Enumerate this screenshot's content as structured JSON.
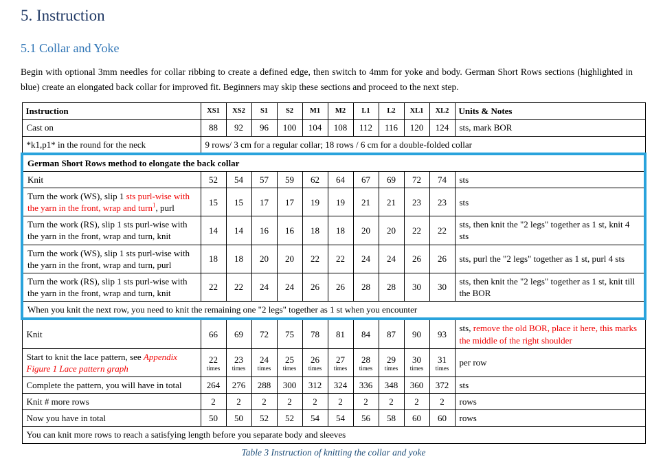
{
  "page": {
    "heading1": "5. Instruction",
    "heading2": "5.1 Collar and Yoke",
    "intro": "Begin with optional 3mm needles for collar ribbing to create a defined edge, then switch to 4mm for yoke and body. German Short Rows sections (highlighted in blue) create an elongated back collar for improved fit. Beginners may skip these sections and proceed to the next step.",
    "caption": "Table 3 Instruction of knitting the collar and yoke"
  },
  "colors": {
    "heading1": "#1f3864",
    "heading2": "#2e74b5",
    "caption": "#1f4e79",
    "highlight_border": "#29a3dc",
    "red_text": "#f00000"
  },
  "table": {
    "header": {
      "instruction": "Instruction",
      "sizes": [
        "XS1",
        "XS2",
        "S1",
        "S2",
        "M1",
        "M2",
        "L1",
        "L2",
        "XL1",
        "XL2"
      ],
      "units": "Units & Notes"
    },
    "sections": [
      {
        "name": "pre-section",
        "highlight": false,
        "rows": [
          {
            "label": "Cast on",
            "values": [
              "88",
              "92",
              "96",
              "100",
              "104",
              "108",
              "112",
              "116",
              "120",
              "124"
            ],
            "units": "sts, mark BOR"
          },
          {
            "label": "*k1,p1* in the round for the neck",
            "span_values": "9 rows/ 3 cm for a regular collar; 18 rows / 6 cm for a double-folded collar"
          }
        ]
      },
      {
        "name": "german-short-rows-section",
        "highlight": true,
        "rows": [
          {
            "span_all": "German Short Rows method to elongate the back collar",
            "bold": true
          },
          {
            "label": "Knit",
            "values": [
              "52",
              "54",
              "57",
              "59",
              "62",
              "64",
              "67",
              "69",
              "72",
              "74"
            ],
            "units": "sts"
          },
          {
            "label": [
              {
                "text": "Turn the work (WS), slip 1 "
              },
              {
                "text": "sts purl-wise with the yarn in the front, wrap and turn",
                "red": true
              },
              {
                "text": "1",
                "red": true,
                "sup": true
              },
              {
                "text": ", purl"
              }
            ],
            "values": [
              "15",
              "15",
              "17",
              "17",
              "19",
              "19",
              "21",
              "21",
              "23",
              "23"
            ],
            "units": "sts"
          },
          {
            "label": "Turn the work (RS), slip 1 sts purl-wise with the yarn in the front, wrap and turn, knit",
            "values": [
              "14",
              "14",
              "16",
              "16",
              "18",
              "18",
              "20",
              "20",
              "22",
              "22"
            ],
            "units": "sts, then knit the \"2 legs\" together as 1 st, knit 4 sts"
          },
          {
            "label": "Turn the work (WS), slip 1 sts purl-wise with the yarn in the front, wrap and turn, purl",
            "values": [
              "18",
              "18",
              "20",
              "20",
              "22",
              "22",
              "24",
              "24",
              "26",
              "26"
            ],
            "units": "sts, purl the \"2 legs\" together as 1 st, purl 4 sts"
          },
          {
            "label": "Turn the work (RS), slip 1 sts purl-wise with the yarn in the front, wrap and turn, knit",
            "values": [
              "22",
              "22",
              "24",
              "24",
              "26",
              "26",
              "28",
              "28",
              "30",
              "30"
            ],
            "units": "sts, then knit the \"2 legs\" together as 1 st, knit till the BOR"
          },
          {
            "span_all": "When you knit the next row, you need to knit the remaining one \"2 legs\" together as 1 st when you encounter"
          }
        ]
      },
      {
        "name": "post-section",
        "highlight": false,
        "rows": [
          {
            "label": "Knit",
            "values": [
              "66",
              "69",
              "72",
              "75",
              "78",
              "81",
              "84",
              "87",
              "90",
              "93"
            ],
            "units": [
              {
                "text": "sts, "
              },
              {
                "text": "remove the old BOR, place it here, this marks the middle of the right shoulder",
                "red": true
              }
            ]
          },
          {
            "label": [
              {
                "text": "Start to knit the lace pattern, see "
              },
              {
                "text": "Appendix Figure 1 Lace pattern graph",
                "red": true,
                "italic": true
              }
            ],
            "values": [
              "22",
              "23",
              "24",
              "25",
              "26",
              "27",
              "28",
              "29",
              "30",
              "31"
            ],
            "value_suffix": "times",
            "units": "per row"
          },
          {
            "label": "Complete the pattern, you will have in total",
            "values": [
              "264",
              "276",
              "288",
              "300",
              "312",
              "324",
              "336",
              "348",
              "360",
              "372"
            ],
            "units": "sts"
          },
          {
            "label": "Knit # more rows",
            "values": [
              "2",
              "2",
              "2",
              "2",
              "2",
              "2",
              "2",
              "2",
              "2",
              "2"
            ],
            "units": "rows"
          },
          {
            "label": "Now you have in total",
            "values": [
              "50",
              "50",
              "52",
              "52",
              "54",
              "54",
              "56",
              "58",
              "60",
              "60"
            ],
            "units": "rows"
          },
          {
            "span_all": "You can knit more rows to reach a satisfying length before you separate body and sleeves"
          }
        ]
      }
    ]
  }
}
